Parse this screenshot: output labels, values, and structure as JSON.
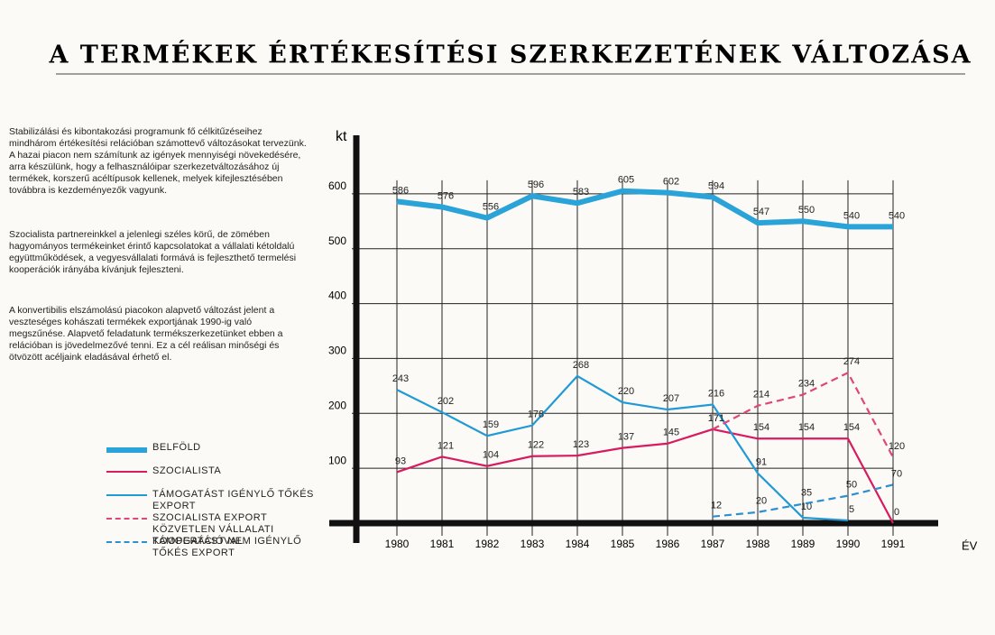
{
  "text": [
    "Stabilizálási és kibontakozási programunk fő célkitűzéseihez mindhárom értékesítési relációban számottevő változásokat tervezünk. A hazai piacon nem számítunk az igények mennyiségi növekedésére, arra készülünk, hogy a felhasználóipar szerkezetváltozásához új termékek, korszerű acéltípusok kellenek, melyek kifejlesztésében továbbra is kezdeményezők vagyunk.",
    "Szocialista partnereinkkel a jelenlegi széles körű, de zömében hagyományos termékeinket érintő kapcsolatokat a vállalati kétoldalú együttműködések, a vegyesvállalati formává is fejleszthető termelési kooperációk irányába kívánjuk fejleszteni.",
    "A konvertibilis elszámolású piacokon alapvető változást jelent a veszteséges kohászati termékek exportjának 1990-ig való megszűnése. Alapvető feladatunk termékszerkezetünket ebben a relációban is jövedelmezővé tenni. Ez a cél reálisan minőségi és ötvözött acéljaink eladásával érhető el."
  ],
  "chart_data": {
    "type": "line",
    "title": "A TERMÉKEK ÉRTÉKESÍTÉSI SZERKEZETÉNEK VÁLTOZÁSA",
    "y_label": "kt",
    "x_label": "ÉV",
    "x": [
      1980,
      1981,
      1982,
      1983,
      1984,
      1985,
      1986,
      1987,
      1988,
      1989,
      1990,
      1991
    ],
    "xlim": [
      1979,
      1992
    ],
    "xticks": [
      1980,
      1981,
      1982,
      1983,
      1984,
      1985,
      1986,
      1987,
      1988,
      1989,
      1990,
      1991
    ],
    "ylim": [
      0,
      700
    ],
    "yticks": [
      100,
      200,
      300,
      400,
      500,
      600
    ],
    "grid": true,
    "series": [
      {
        "name": "BELFÖLD",
        "color": "#2aa3d8",
        "dashed": false,
        "values": [
          586,
          576,
          556,
          596,
          583,
          605,
          602,
          594,
          547,
          550,
          540,
          540
        ]
      },
      {
        "name": "SZOCIALISTA",
        "color": "#d81b60",
        "dashed": false,
        "values": [
          93,
          121,
          104,
          122,
          123,
          137,
          145,
          171,
          154,
          154,
          154,
          0
        ]
      },
      {
        "name": "TÁMOGATÁST IGÉNYLŐ TŐKÉS EXPORT",
        "color": "#1f9ad6",
        "dashed": false,
        "values": [
          243,
          202,
          159,
          178,
          268,
          220,
          207,
          216,
          91,
          10,
          5,
          null
        ]
      },
      {
        "name": "SZOCIALISTA EXPORT KÖZVETLEN VÁLLALATI KOOPERÁCIÓVAL",
        "color": "#e0457b",
        "dashed": true,
        "values": [
          null,
          null,
          null,
          null,
          null,
          null,
          null,
          171,
          214,
          234,
          274,
          120
        ]
      },
      {
        "name": "TÁMOGATÁST NEM IGÉNYLŐ TŐKÉS EXPORT",
        "color": "#2b8fd0",
        "dashed": true,
        "values": [
          null,
          null,
          null,
          null,
          null,
          null,
          null,
          12,
          20,
          35,
          50,
          70
        ]
      }
    ]
  }
}
